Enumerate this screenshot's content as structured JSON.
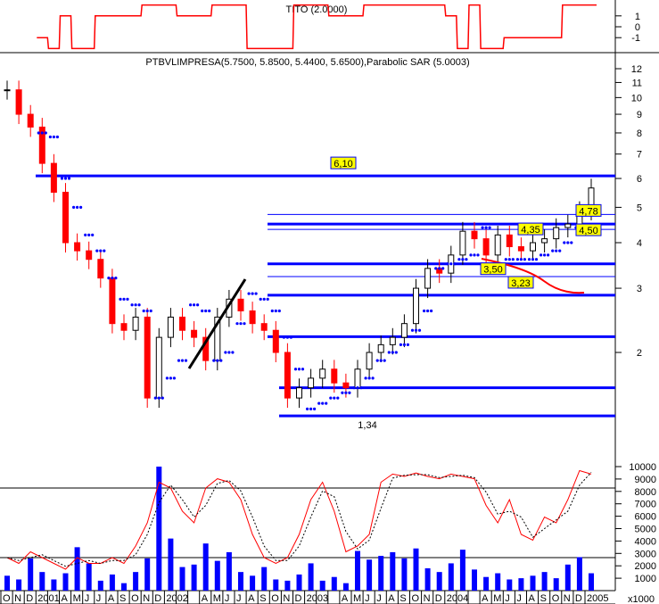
{
  "chart_data": {
    "type": "line",
    "panels": {
      "indicator_top": {
        "title": "TITO (2.0000)",
        "yticks": [
          "1",
          "0",
          "-1"
        ],
        "ylim": [
          -2,
          2
        ],
        "color": "#ff0000"
      },
      "price": {
        "title": "PTBVLIMPRESA(5.7500, 5.8500, 5.4400, 5.6500),Parabolic SAR (5.0003)",
        "yscale": "log",
        "yticks": [
          "12",
          "11",
          "10",
          "9",
          "8",
          "7",
          "6",
          "5",
          "4",
          "3",
          "2"
        ],
        "ylim": [
          1.2,
          13
        ]
      },
      "volume": {
        "yticks": [
          "10000",
          "9000",
          "8000",
          "7000",
          "6000",
          "5000",
          "4000",
          "3000",
          "2000",
          "1000"
        ],
        "unit": "x1000",
        "bar_color": "#0000ff",
        "oscillator_color": "#ff0000",
        "oscillator_levels": [
          80,
          20
        ]
      }
    },
    "x_tick_labels": [
      "O",
      "N",
      "D",
      "2001",
      "",
      "A",
      "M",
      "J",
      "J",
      "A",
      "S",
      "O",
      "N",
      "D",
      "2002",
      "",
      "",
      "A",
      "M",
      "J",
      "J",
      "A",
      "S",
      "O",
      "N",
      "D",
      "2003",
      "",
      "",
      "A",
      "M",
      "J",
      "J",
      "A",
      "S",
      "O",
      "N",
      "D",
      "2004",
      "",
      "",
      "A",
      "M",
      "J",
      "J",
      "A",
      "S",
      "O",
      "N",
      "D",
      "2005"
    ],
    "months": [
      "2000-10",
      "2000-11",
      "2000-12",
      "2001-01",
      "2001-02",
      "2001-03",
      "2001-04",
      "2001-05",
      "2001-06",
      "2001-07",
      "2001-08",
      "2001-09",
      "2001-10",
      "2001-11",
      "2001-12",
      "2002-01",
      "2002-02",
      "2002-03",
      "2002-04",
      "2002-05",
      "2002-06",
      "2002-07",
      "2002-08",
      "2002-09",
      "2002-10",
      "2002-11",
      "2002-12",
      "2003-01",
      "2003-02",
      "2003-03",
      "2003-04",
      "2003-05",
      "2003-06",
      "2003-07",
      "2003-08",
      "2003-09",
      "2003-10",
      "2003-11",
      "2003-12",
      "2004-01",
      "2004-02",
      "2004-03",
      "2004-04",
      "2004-05",
      "2004-06",
      "2004-07",
      "2004-08",
      "2004-09",
      "2004-10",
      "2004-11",
      "2004-12"
    ],
    "close": [
      10.5,
      9.0,
      8.3,
      6.6,
      5.5,
      4.0,
      3.8,
      3.6,
      3.2,
      2.4,
      2.3,
      2.5,
      1.5,
      2.2,
      2.5,
      2.3,
      2.2,
      1.9,
      2.5,
      2.8,
      2.6,
      2.4,
      2.3,
      2.0,
      1.5,
      1.6,
      1.7,
      1.8,
      1.65,
      1.6,
      1.8,
      2.0,
      2.1,
      2.2,
      2.4,
      3.0,
      3.4,
      3.3,
      3.7,
      4.3,
      4.1,
      3.7,
      4.2,
      3.9,
      3.8,
      4.0,
      4.1,
      4.4,
      4.5,
      4.9,
      5.65
    ],
    "sar": [
      null,
      null,
      null,
      8.0,
      7.8,
      6.0,
      5.0,
      4.2,
      3.8,
      3.2,
      2.8,
      2.7,
      2.6,
      1.5,
      1.7,
      1.9,
      2.7,
      2.6,
      1.9,
      2.0,
      2.4,
      2.9,
      2.8,
      2.6,
      2.2,
      1.8,
      1.4,
      1.45,
      1.5,
      1.55,
      1.6,
      1.7,
      1.9,
      2.0,
      2.1,
      2.3,
      2.6,
      3.4,
      3.5,
      3.6,
      3.7,
      4.4,
      3.5,
      3.6,
      3.6,
      3.6,
      3.7,
      3.8,
      4.0,
      4.4,
      5.0
    ],
    "tito": [
      null,
      null,
      null,
      -1,
      -2,
      1,
      -2,
      -2,
      1,
      1,
      1,
      1,
      2,
      2,
      2,
      1,
      1,
      1,
      2,
      2,
      2,
      -2,
      -2,
      -2,
      -2,
      2,
      2,
      2,
      1,
      1,
      1,
      2,
      2,
      2,
      2,
      2,
      2,
      2,
      1,
      -2,
      2,
      -2,
      -2,
      -1,
      -1,
      -1,
      -1,
      -1,
      2,
      2,
      2
    ],
    "volume_k": [
      1200,
      900,
      2600,
      1500,
      900,
      1400,
      3500,
      2200,
      800,
      1300,
      600,
      1500,
      2600,
      10000,
      4200,
      1900,
      2100,
      3800,
      2400,
      3100,
      1500,
      1200,
      1900,
      900,
      800,
      1300,
      2200,
      800,
      1100,
      600,
      3200,
      2500,
      2800,
      3100,
      2600,
      3400,
      1800,
      1500,
      2200,
      3300,
      1700,
      1100,
      1400,
      900,
      1000,
      1200,
      1500,
      1000,
      2100,
      2700,
      1400
    ],
    "oscillator": [
      20,
      15,
      25,
      20,
      15,
      10,
      20,
      15,
      15,
      20,
      15,
      30,
      50,
      85,
      80,
      60,
      50,
      80,
      88,
      85,
      70,
      40,
      20,
      15,
      20,
      40,
      70,
      85,
      60,
      25,
      30,
      40,
      85,
      92,
      90,
      93,
      90,
      88,
      92,
      90,
      88,
      65,
      50,
      70,
      40,
      35,
      55,
      50,
      70,
      95,
      92
    ],
    "levels": [
      {
        "value": 6.1,
        "label": "6,10",
        "thick": true
      },
      {
        "value": 4.78,
        "label": "4,78",
        "thick": false
      },
      {
        "value": 4.5,
        "label": "4,50",
        "thick": true
      },
      {
        "value": 4.35,
        "label": "4,35",
        "thick": false
      },
      {
        "value": 3.5,
        "label": "3,50",
        "thick": true
      },
      {
        "value": 3.23,
        "label": "3,23",
        "thick": false
      },
      {
        "value": 2.87,
        "label": "",
        "thick": true
      },
      {
        "value": 2.21,
        "label": "",
        "thick": true
      },
      {
        "value": 1.6,
        "label": "",
        "thick": true
      },
      {
        "value": 1.34,
        "label": "1,34",
        "thick": true
      }
    ],
    "colors": {
      "up": "#000000",
      "down": "#ff0000",
      "sar": "#0000ff",
      "level": "#0000ff",
      "label_bg": "#ffff00"
    }
  }
}
